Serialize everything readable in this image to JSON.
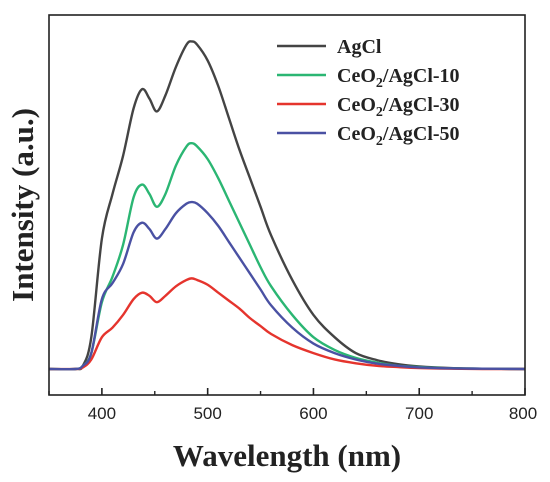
{
  "chart_data": {
    "type": "line",
    "title": "",
    "xlabel": "Wavelength (nm)",
    "ylabel": "Intensity (a.u.)",
    "xlim": [
      350,
      800
    ],
    "ylim": [
      0,
      1.07
    ],
    "x_ticks": [
      400,
      500,
      600,
      700,
      800
    ],
    "y_ticks_shown": false,
    "grid": false,
    "legend_position": "top-right",
    "series": [
      {
        "name": "AgCl",
        "color": "#444444",
        "x": [
          350,
          375,
          382,
          390,
          400,
          410,
          420,
          430,
          438,
          445,
          452,
          460,
          470,
          480,
          485,
          490,
          500,
          510,
          520,
          530,
          540,
          550,
          560,
          580,
          600,
          620,
          640,
          660,
          680,
          700,
          730,
          760,
          800
        ],
        "y": [
          0,
          0,
          0.01,
          0.1,
          0.41,
          0.55,
          0.67,
          0.82,
          0.88,
          0.85,
          0.81,
          0.86,
          0.95,
          1.02,
          1.03,
          1.02,
          0.97,
          0.89,
          0.79,
          0.69,
          0.6,
          0.51,
          0.42,
          0.28,
          0.17,
          0.1,
          0.05,
          0.028,
          0.015,
          0.008,
          0.003,
          0.001,
          0
        ]
      },
      {
        "name": "CeO2/AgCl-10",
        "color": "#2bb673",
        "x": [
          350,
          375,
          382,
          390,
          400,
          410,
          420,
          430,
          438,
          445,
          452,
          460,
          470,
          480,
          485,
          490,
          500,
          510,
          520,
          530,
          540,
          550,
          560,
          580,
          600,
          620,
          640,
          660,
          680,
          700,
          730,
          760,
          800
        ],
        "y": [
          0,
          0,
          0.01,
          0.05,
          0.21,
          0.29,
          0.39,
          0.54,
          0.58,
          0.55,
          0.51,
          0.55,
          0.64,
          0.7,
          0.71,
          0.7,
          0.66,
          0.6,
          0.53,
          0.46,
          0.39,
          0.32,
          0.26,
          0.17,
          0.1,
          0.06,
          0.035,
          0.02,
          0.01,
          0.006,
          0.002,
          0.001,
          0
        ]
      },
      {
        "name": "CeO2/AgCl-30",
        "color": "#e5342d",
        "x": [
          350,
          375,
          382,
          390,
          400,
          410,
          420,
          430,
          438,
          445,
          452,
          460,
          470,
          480,
          485,
          490,
          500,
          510,
          520,
          530,
          540,
          550,
          560,
          580,
          600,
          620,
          640,
          660,
          680,
          700,
          730,
          760,
          800
        ],
        "y": [
          0,
          0,
          0.005,
          0.03,
          0.1,
          0.13,
          0.17,
          0.22,
          0.24,
          0.23,
          0.21,
          0.23,
          0.26,
          0.28,
          0.285,
          0.28,
          0.265,
          0.24,
          0.215,
          0.19,
          0.16,
          0.135,
          0.11,
          0.075,
          0.05,
          0.03,
          0.018,
          0.01,
          0.006,
          0.003,
          0.001,
          0,
          0
        ]
      },
      {
        "name": "CeO2/AgCl-50",
        "color": "#4a51a3",
        "x": [
          350,
          375,
          382,
          390,
          400,
          410,
          420,
          430,
          438,
          445,
          452,
          460,
          470,
          480,
          485,
          490,
          500,
          510,
          520,
          530,
          540,
          550,
          560,
          580,
          600,
          620,
          640,
          660,
          680,
          700,
          730,
          760,
          800
        ],
        "y": [
          0,
          0,
          0.01,
          0.05,
          0.22,
          0.27,
          0.33,
          0.43,
          0.46,
          0.44,
          0.41,
          0.44,
          0.49,
          0.52,
          0.525,
          0.52,
          0.49,
          0.45,
          0.4,
          0.35,
          0.3,
          0.25,
          0.2,
          0.13,
          0.08,
          0.05,
          0.03,
          0.017,
          0.01,
          0.005,
          0.002,
          0.001,
          0
        ]
      }
    ]
  },
  "legend": [
    {
      "prefix": "AgCl",
      "sub": "",
      "suffix": ""
    },
    {
      "prefix": "CeO",
      "sub": "2",
      "suffix": "/AgCl-10"
    },
    {
      "prefix": "CeO",
      "sub": "2",
      "suffix": "/AgCl-30"
    },
    {
      "prefix": "CeO",
      "sub": "2",
      "suffix": "/AgCl-50"
    }
  ]
}
